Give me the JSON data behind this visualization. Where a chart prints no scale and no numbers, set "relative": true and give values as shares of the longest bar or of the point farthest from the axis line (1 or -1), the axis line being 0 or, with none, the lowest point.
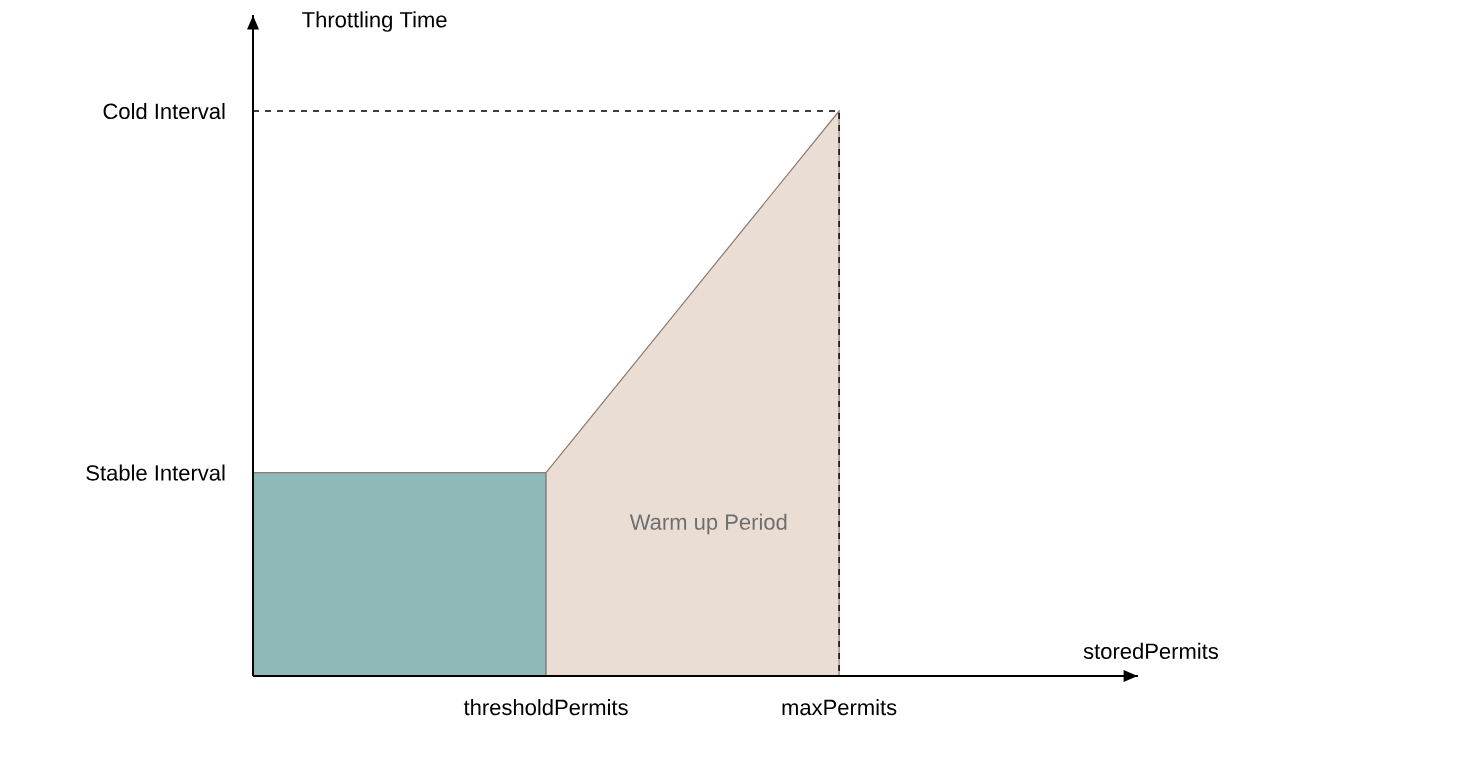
{
  "chart_data": {
    "type": "area",
    "relative": true,
    "xlabel": "storedPermits",
    "ylabel": "Throttling Time",
    "categories": [
      null,
      "thresholdPermits",
      "maxPermits"
    ],
    "series": [
      {
        "color": "#8fb8b9",
        "values": [
          0.36,
          0.36,
          null
        ]
      },
      {
        "color": "#eaddd3",
        "values": [
          null,
          0.36,
          1
        ]
      }
    ],
    "annotations": [
      "Cold Interval",
      "Stable Interval",
      "Warm up Period"
    ]
  }
}
